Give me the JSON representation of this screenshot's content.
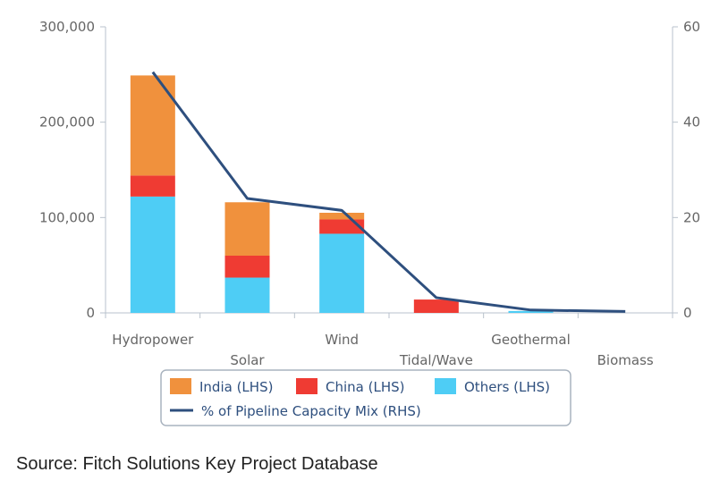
{
  "chart_data": {
    "type": "bar",
    "stacked": true,
    "categories": [
      "Hydropower",
      "Solar",
      "Wind",
      "Tidal/Wave",
      "Geothermal",
      "Biomass"
    ],
    "series": [
      {
        "name": "Others (LHS)",
        "color": "#4ecdf5",
        "axis": "left",
        "values": [
          122000,
          37000,
          83000,
          0,
          2000,
          0
        ]
      },
      {
        "name": "China (LHS)",
        "color": "#ef3b33",
        "axis": "left",
        "values": [
          22000,
          23000,
          15000,
          14000,
          0,
          0
        ]
      },
      {
        "name": "India (LHS)",
        "color": "#f0913d",
        "axis": "left",
        "values": [
          105000,
          56000,
          7000,
          0,
          0,
          0
        ]
      }
    ],
    "line_series": {
      "name": "% of Pipeline Capacity Mix (RHS)",
      "color": "#2e4f7e",
      "axis": "right",
      "type": "line",
      "values": [
        50.5,
        24,
        21.5,
        3.2,
        0.6,
        0.3
      ]
    },
    "y_left": {
      "min": 0,
      "max": 300000,
      "ticks": [
        0,
        100000,
        200000,
        300000
      ],
      "tick_labels": [
        "0",
        "100,000",
        "200,000",
        "300,000"
      ]
    },
    "y_right": {
      "min": 0,
      "max": 60,
      "ticks": [
        0,
        20,
        40,
        60
      ],
      "tick_labels": [
        "0",
        "20",
        "40",
        "60"
      ]
    },
    "legend_order": [
      "India (LHS)",
      "China (LHS)",
      "Others (LHS)"
    ],
    "legend_placement": "bottom",
    "grid": false
  },
  "source_text": "Source: Fitch Solutions Key Project Database"
}
